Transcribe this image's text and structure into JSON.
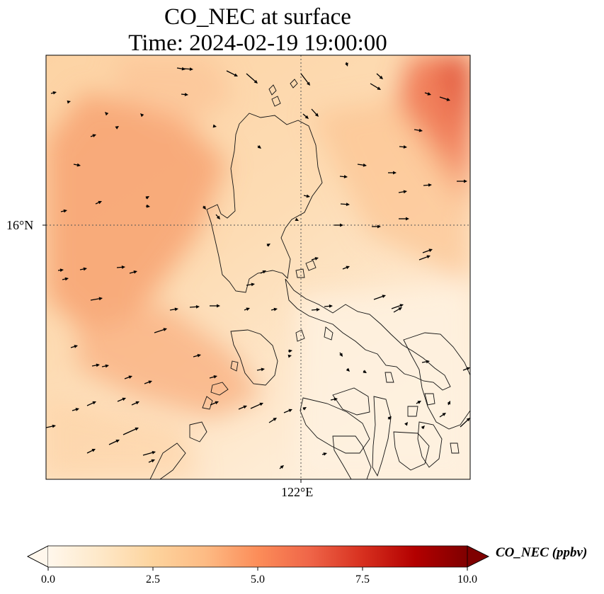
{
  "title_line1": "CO_NEC at surface",
  "title_line2": "Time: 2024-02-19 19:00:00",
  "lat_label": "16°N",
  "lon_label": "122°E",
  "colorbar": {
    "label": "CO_NEC (ppbv)",
    "ticks": [
      "0.0",
      "2.5",
      "5.0",
      "7.5",
      "10.0"
    ],
    "min": 0,
    "max": 10,
    "extend": "both",
    "colormap": "OrRd",
    "colors": [
      "#fff7ec",
      "#fee8c8",
      "#fdd49e",
      "#fdbb84",
      "#fc8d59",
      "#ef6548",
      "#d7301f",
      "#b30000",
      "#7f0000"
    ]
  },
  "field_colors": {
    "light": "#fde9cf",
    "medium": "#fdc592",
    "high": "#f7a06e",
    "peak": "#e5533a"
  },
  "map_features": [
    "coastlines",
    "gridlines",
    "wind vectors"
  ]
}
